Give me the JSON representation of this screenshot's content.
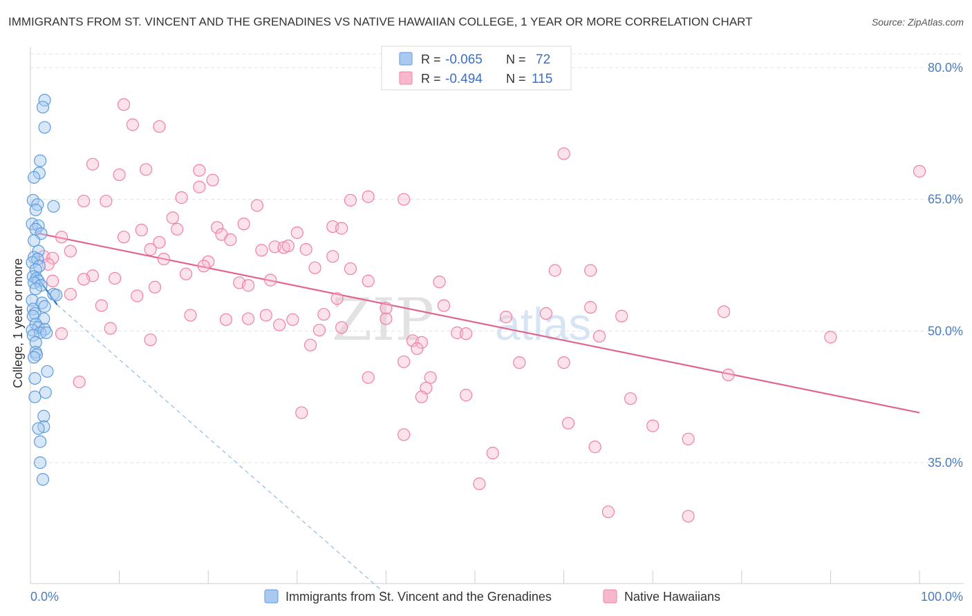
{
  "title": "IMMIGRANTS FROM ST. VINCENT AND THE GRENADINES VS NATIVE HAWAIIAN COLLEGE, 1 YEAR OR MORE CORRELATION CHART",
  "source": "Source: ZipAtlas.com",
  "watermark": {
    "zip": "ZIP",
    "atlas": "atlas"
  },
  "stats": [
    {
      "r_label": "R =",
      "r": "-0.065",
      "n_label": "N =",
      "n": "72",
      "color": "#a9c9f0"
    },
    {
      "r_label": "R =",
      "r": "-0.494",
      "n_label": "N =",
      "n": "115",
      "color": "#f7b8cc"
    }
  ],
  "chart_data": {
    "type": "scatter",
    "title": "IMMIGRANTS FROM ST. VINCENT AND THE GRENADINES VS NATIVE HAWAIIAN COLLEGE, 1 YEAR OR MORE CORRELATION CHART",
    "xlabel": "",
    "ylabel": "College, 1 year or more",
    "xlim": [
      0,
      100
    ],
    "ylim": [
      20,
      82
    ],
    "x_tick_labels": [
      "0.0%",
      "100.0%"
    ],
    "y_ticks": [
      35,
      50,
      65,
      80
    ],
    "y_tick_labels": [
      "35.0%",
      "50.0%",
      "65.0%",
      "80.0%"
    ],
    "grid": true,
    "legend_position": "bottom",
    "series": [
      {
        "name": "Immigrants from St. Vincent and the Grenadines",
        "color": "#5b9be0",
        "trend": {
          "x": [
            0.5,
            3.0
          ],
          "y": [
            56.5,
            53.0
          ]
        },
        "trend_extended": {
          "x": [
            3.0,
            40.0
          ],
          "y": [
            53.0,
            20.0
          ]
        },
        "points": [
          [
            1.6,
            76.3
          ],
          [
            1.4,
            75.5
          ],
          [
            1.6,
            73.2
          ],
          [
            1.1,
            69.4
          ],
          [
            1.0,
            68.0
          ],
          [
            0.4,
            67.5
          ],
          [
            0.3,
            64.9
          ],
          [
            0.8,
            64.4
          ],
          [
            2.6,
            64.2
          ],
          [
            0.6,
            63.8
          ],
          [
            0.2,
            62.2
          ],
          [
            0.9,
            62.0
          ],
          [
            0.6,
            61.6
          ],
          [
            1.2,
            61.1
          ],
          [
            0.4,
            60.3
          ],
          [
            0.9,
            59.1
          ],
          [
            0.4,
            58.4
          ],
          [
            0.8,
            58.2
          ],
          [
            0.2,
            57.8
          ],
          [
            1.0,
            57.4
          ],
          [
            0.6,
            57.0
          ],
          [
            0.3,
            56.2
          ],
          [
            0.7,
            56.0
          ],
          [
            0.9,
            55.7
          ],
          [
            0.4,
            55.5
          ],
          [
            1.2,
            55.2
          ],
          [
            0.6,
            54.8
          ],
          [
            2.6,
            54.2
          ],
          [
            2.9,
            54.1
          ],
          [
            0.2,
            53.5
          ],
          [
            1.3,
            53.2
          ],
          [
            1.6,
            52.8
          ],
          [
            0.3,
            52.5
          ],
          [
            0.5,
            52.0
          ],
          [
            0.3,
            51.7
          ],
          [
            1.5,
            51.4
          ],
          [
            0.6,
            50.8
          ],
          [
            0.9,
            50.4
          ],
          [
            0.2,
            50.1
          ],
          [
            1.6,
            50.2
          ],
          [
            1.1,
            49.8
          ],
          [
            0.3,
            49.5
          ],
          [
            1.8,
            49.8
          ],
          [
            0.6,
            48.7
          ],
          [
            0.6,
            47.6
          ],
          [
            0.7,
            47.3
          ],
          [
            0.4,
            47.0
          ],
          [
            1.9,
            45.4
          ],
          [
            0.5,
            44.6
          ],
          [
            1.7,
            43.0
          ],
          [
            0.5,
            42.5
          ],
          [
            1.5,
            40.3
          ],
          [
            1.5,
            39.1
          ],
          [
            0.9,
            38.9
          ],
          [
            1.1,
            37.4
          ],
          [
            1.1,
            35.0
          ],
          [
            1.4,
            33.1
          ]
        ]
      },
      {
        "name": "Native Hawaiians",
        "color": "#f07fa3",
        "trend": {
          "x": [
            0.5,
            100.0
          ],
          "y": [
            61.2,
            40.7
          ]
        },
        "points": [
          [
            10.5,
            75.8
          ],
          [
            11.5,
            73.5
          ],
          [
            14.5,
            73.3
          ],
          [
            7.0,
            69.0
          ],
          [
            10.0,
            67.8
          ],
          [
            13.0,
            68.4
          ],
          [
            19.0,
            68.3
          ],
          [
            20.5,
            67.2
          ],
          [
            19.0,
            66.4
          ],
          [
            17.0,
            65.2
          ],
          [
            6.0,
            64.8
          ],
          [
            8.5,
            64.8
          ],
          [
            36.0,
            64.9
          ],
          [
            38.0,
            65.3
          ],
          [
            42.0,
            65.0
          ],
          [
            25.5,
            64.3
          ],
          [
            16.0,
            62.9
          ],
          [
            12.5,
            61.5
          ],
          [
            16.5,
            61.6
          ],
          [
            21.0,
            61.8
          ],
          [
            24.0,
            62.2
          ],
          [
            34.0,
            61.9
          ],
          [
            35.0,
            61.7
          ],
          [
            3.5,
            60.7
          ],
          [
            10.5,
            60.7
          ],
          [
            21.5,
            61.0
          ],
          [
            22.5,
            60.4
          ],
          [
            30.0,
            61.2
          ],
          [
            14.5,
            60.1
          ],
          [
            4.5,
            59.1
          ],
          [
            13.5,
            59.3
          ],
          [
            26.0,
            59.2
          ],
          [
            27.5,
            59.6
          ],
          [
            28.5,
            59.5
          ],
          [
            29.0,
            59.7
          ],
          [
            31.0,
            59.3
          ],
          [
            1.5,
            58.5
          ],
          [
            2.5,
            58.3
          ],
          [
            15.0,
            58.2
          ],
          [
            20.0,
            57.9
          ],
          [
            34.0,
            58.5
          ],
          [
            2.0,
            57.6
          ],
          [
            19.5,
            57.4
          ],
          [
            32.0,
            57.2
          ],
          [
            36.0,
            57.1
          ],
          [
            59.0,
            56.9
          ],
          [
            63.0,
            56.9
          ],
          [
            7.0,
            56.3
          ],
          [
            9.5,
            56.0
          ],
          [
            17.5,
            56.5
          ],
          [
            6.0,
            55.9
          ],
          [
            2.5,
            55.7
          ],
          [
            23.5,
            55.5
          ],
          [
            27.0,
            55.8
          ],
          [
            38.0,
            55.7
          ],
          [
            46.0,
            55.6
          ],
          [
            24.5,
            55.2
          ],
          [
            14.0,
            55.0
          ],
          [
            4.5,
            54.2
          ],
          [
            12.0,
            54.0
          ],
          [
            34.5,
            53.7
          ],
          [
            8.0,
            52.9
          ],
          [
            40.0,
            52.6
          ],
          [
            46.5,
            52.9
          ],
          [
            63.0,
            52.7
          ],
          [
            78.0,
            52.2
          ],
          [
            18.0,
            51.8
          ],
          [
            22.0,
            51.3
          ],
          [
            24.5,
            51.4
          ],
          [
            26.5,
            51.8
          ],
          [
            29.5,
            51.3
          ],
          [
            33.0,
            51.9
          ],
          [
            40.0,
            51.4
          ],
          [
            53.5,
            51.6
          ],
          [
            58.0,
            52.0
          ],
          [
            66.5,
            51.7
          ],
          [
            28.0,
            50.7
          ],
          [
            32.5,
            50.1
          ],
          [
            35.0,
            50.4
          ],
          [
            9.0,
            50.3
          ],
          [
            3.5,
            49.7
          ],
          [
            48.0,
            49.8
          ],
          [
            49.0,
            49.7
          ],
          [
            64.0,
            49.4
          ],
          [
            90.0,
            49.3
          ],
          [
            13.5,
            49.0
          ],
          [
            31.5,
            48.4
          ],
          [
            43.0,
            48.9
          ],
          [
            44.0,
            48.7
          ],
          [
            43.5,
            48.0
          ],
          [
            42.0,
            46.5
          ],
          [
            55.0,
            46.4
          ],
          [
            60.0,
            46.4
          ],
          [
            78.5,
            45.0
          ],
          [
            38.0,
            44.7
          ],
          [
            45.0,
            44.7
          ],
          [
            5.5,
            44.2
          ],
          [
            44.5,
            43.5
          ],
          [
            44.0,
            42.5
          ],
          [
            49.0,
            42.7
          ],
          [
            67.5,
            42.3
          ],
          [
            30.5,
            40.7
          ],
          [
            60.5,
            39.5
          ],
          [
            70.0,
            39.2
          ],
          [
            42.0,
            38.2
          ],
          [
            63.5,
            36.8
          ],
          [
            74.0,
            37.7
          ],
          [
            52.0,
            36.1
          ],
          [
            50.5,
            32.6
          ],
          [
            65.0,
            29.4
          ],
          [
            74.0,
            28.9
          ],
          [
            60.0,
            70.2
          ],
          [
            100.0,
            68.2
          ]
        ]
      }
    ]
  },
  "legend": [
    {
      "label": "Immigrants from St. Vincent and the Grenadines",
      "color": "#a9c9f0",
      "border": "#5b9be0"
    },
    {
      "label": "Native Hawaiians",
      "color": "#f7b8cc",
      "border": "#f07fa3"
    }
  ]
}
